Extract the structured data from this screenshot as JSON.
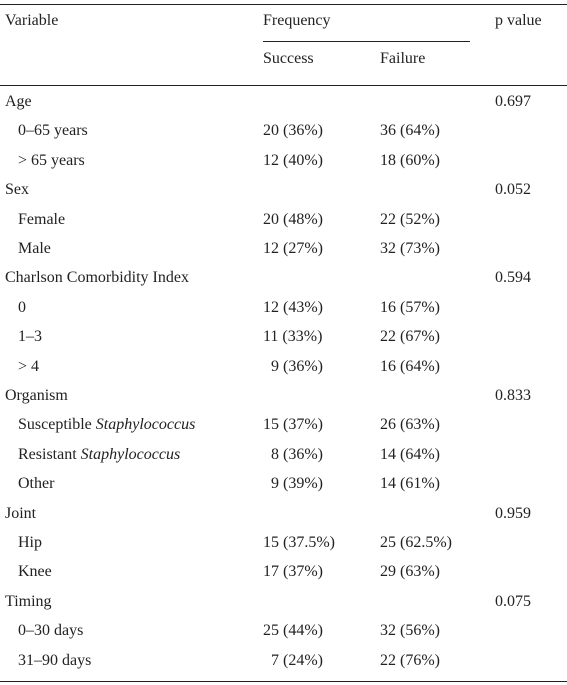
{
  "header": {
    "variable": "Variable",
    "frequency": "Frequency",
    "success": "Success",
    "failure": "Failure",
    "p_value": "p value"
  },
  "groups": [
    {
      "label": "Age",
      "p_value": "0.697",
      "rows": [
        {
          "label": "0–65 years",
          "success": "20 (36%)",
          "failure": "36 (64%)"
        },
        {
          "label": "> 65 years",
          "success": "12 (40%)",
          "failure": "18 (60%)"
        }
      ]
    },
    {
      "label": "Sex",
      "p_value": "0.052",
      "rows": [
        {
          "label": "Female",
          "success": "20 (48%)",
          "failure": "22 (52%)"
        },
        {
          "label": "Male",
          "success": "12 (27%)",
          "failure": "32 (73%)"
        }
      ]
    },
    {
      "label": "Charlson Comorbidity Index",
      "p_value": "0.594",
      "rows": [
        {
          "label": "0",
          "success": "12 (43%)",
          "failure": "16 (57%)"
        },
        {
          "label": "1–3",
          "success": "11 (33%)",
          "failure": "22 (67%)"
        },
        {
          "label": "> 4",
          "success": "9 (36%)",
          "failure": "16 (64%)"
        }
      ]
    },
    {
      "label": "Organism",
      "p_value": "0.833",
      "rows": [
        {
          "label": "Susceptible",
          "italic": "Staphylococcus",
          "success": "15 (37%)",
          "failure": "26 (63%)"
        },
        {
          "label": "Resistant",
          "italic": "Staphylococcus",
          "success": "8 (36%)",
          "failure": "14 (64%)"
        },
        {
          "label": "Other",
          "success": "9 (39%)",
          "failure": "14 (61%)"
        }
      ]
    },
    {
      "label": "Joint",
      "p_value": "0.959",
      "rows": [
        {
          "label": "Hip",
          "success": "15 (37.5%)",
          "failure": "25 (62.5%)"
        },
        {
          "label": "Knee",
          "success": "17 (37%)",
          "failure": "29 (63%)"
        }
      ]
    },
    {
      "label": "Timing",
      "p_value": "0.075",
      "rows": [
        {
          "label": "0–30 days",
          "success": "25 (44%)",
          "failure": "32 (56%)"
        },
        {
          "label": "31–90 days",
          "success": "7 (24%)",
          "failure": "22 (76%)"
        }
      ]
    }
  ]
}
